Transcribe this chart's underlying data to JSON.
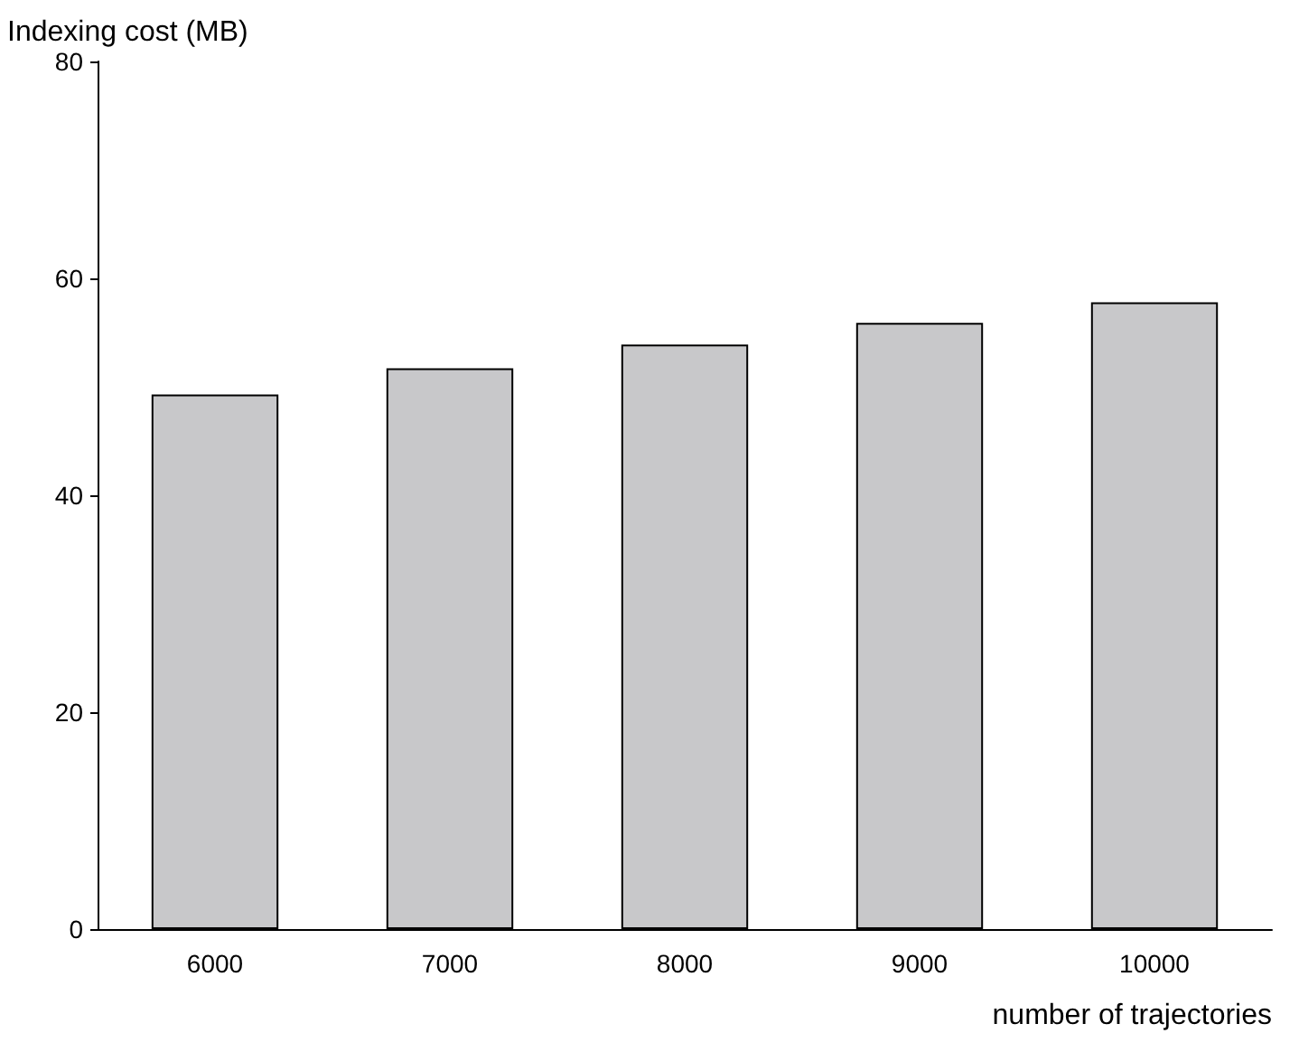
{
  "chart_data": {
    "type": "bar",
    "xlabel": "number of trajectories",
    "ylabel": "Indexing cost (MB)",
    "categories": [
      "6000",
      "7000",
      "8000",
      "9000",
      "10000"
    ],
    "values": [
      49.3,
      51.7,
      53.9,
      55.9,
      57.8
    ],
    "color": "#c8c8ca",
    "ylim": [
      0,
      80
    ],
    "yticks": [
      0,
      20,
      40,
      60,
      80
    ],
    "grid": false
  }
}
